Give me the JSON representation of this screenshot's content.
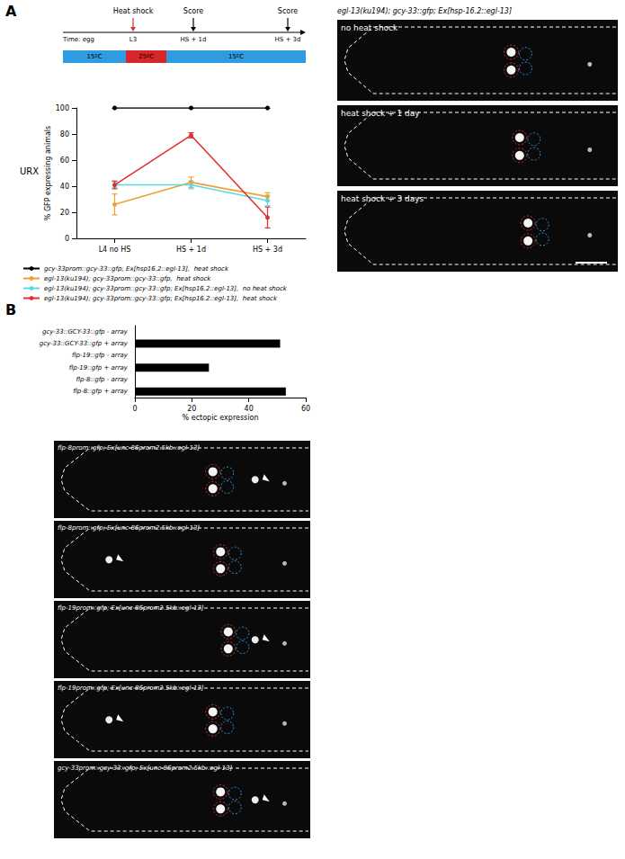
{
  "panel_labels": [
    "A",
    "B"
  ],
  "timeline": {
    "heat_shock_label": "Heat shock",
    "score_labels": [
      "Score",
      "Score"
    ],
    "time_labels": [
      "Time: egg",
      "L3",
      "HS + 1d",
      "HS + 3d"
    ],
    "temperature_labels": [
      "15ºC",
      "25ºC",
      "15ºC"
    ]
  },
  "chart_data": [
    {
      "type": "line",
      "title": "URX",
      "y_label": "% GFP expressing animals",
      "categories": [
        "L4 no HS",
        "HS + 1d",
        "HS + 3d"
      ],
      "ylim": [
        0,
        100
      ],
      "yticks": [
        0,
        20,
        40,
        60,
        80,
        100
      ],
      "grid": false,
      "marker": "circle",
      "legend": "bottom",
      "series": [
        {
          "name": "gcy-33prom::gcy-33::gfp; Ex[hsp16.2::egl-13],  heat shock",
          "color": "#000000",
          "values": [
            100,
            100,
            100
          ],
          "errors": [
            0,
            0,
            0
          ]
        },
        {
          "name": "egl-13(ku194); gcy-33prom::gcy-33::gfp,  heat shock",
          "color": "#f0a030",
          "values": [
            26,
            43,
            32
          ],
          "errors": [
            8,
            4,
            3
          ]
        },
        {
          "name": "egl-13(ku194); gcy-33prom::gcy-33::gfp; Ex[hsp16.2::egl-13],  no heat shock",
          "color": "#5ad8e6",
          "values": [
            41,
            41,
            29
          ],
          "errors": [
            2,
            3,
            4
          ]
        },
        {
          "name": "egl-13(ku194); gcy-33prom::gcy-33::gfp; Ex[hsp16.2::egl-13],  heat shock",
          "color": "#e03030",
          "values": [
            41,
            79,
            16
          ],
          "errors": [
            3,
            2,
            8
          ]
        }
      ]
    },
    {
      "type": "bar",
      "orientation": "horizontal",
      "x_label": "% ectopic expression",
      "categories": [
        "gcy-33::GCY-33::gfp - array",
        "gcy-33::GCY-33::gfp + array",
        "flp-19::gfp - array",
        "flp-19::gfp + array",
        "flp-8::gfp - array",
        "flp-8::gfp + array"
      ],
      "values": [
        0,
        51,
        0,
        26,
        0,
        53
      ],
      "color": "#000000",
      "xlim": [
        0,
        60
      ],
      "xticks": [
        0,
        20,
        40,
        60
      ],
      "grid": false
    }
  ],
  "images_A": {
    "title": "egl-13(ku194); gcy-33::gfp; Ex[hsp-16.2::egl-13]",
    "panels": [
      "no heat shock",
      "heat shock + 1 day",
      "heat shock + 3 days"
    ]
  },
  "images_B": {
    "panels": [
      "flp-8prom::gfp; Ex[unc-86prom2.5kb::egl-13]",
      "flp-8prom::gfp; Ex[unc-86prom2.5kb::egl-13]",
      "flp-19prom::gfp; Ex[unc-86prom2.5kb::egl-13]",
      "flp-19prom::gfp; Ex[unc-86prom2.5kb::egl-13]",
      "gcy-33prom::gcy-33::gfp; Ex[unc-86prom2.5kb::egl-13]"
    ]
  }
}
